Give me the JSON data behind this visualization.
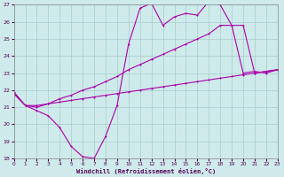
{
  "xlabel": "Windchill (Refroidissement éolien,°C)",
  "xlim": [
    0,
    23
  ],
  "ylim": [
    18,
    27
  ],
  "yticks": [
    18,
    19,
    20,
    21,
    22,
    23,
    24,
    25,
    26,
    27
  ],
  "xticks": [
    0,
    1,
    2,
    3,
    4,
    5,
    6,
    7,
    8,
    9,
    10,
    11,
    12,
    13,
    14,
    15,
    16,
    17,
    18,
    19,
    20,
    21,
    22,
    23
  ],
  "bg_color": "#ceeaea",
  "grid_color": "#aacccc",
  "line_color": "#aa00aa",
  "series1_x": [
    0,
    1,
    2,
    3,
    4,
    5,
    6,
    7,
    8,
    9,
    10,
    11,
    12,
    13,
    14,
    15,
    16,
    17,
    18,
    19,
    20,
    21,
    22,
    23
  ],
  "series1_y": [
    21.9,
    21.1,
    20.8,
    20.5,
    19.8,
    18.7,
    18.1,
    18.0,
    19.3,
    21.1,
    24.7,
    26.8,
    27.1,
    25.8,
    26.3,
    26.5,
    26.4,
    27.2,
    27.0,
    25.8,
    23.0,
    23.1,
    23.0,
    23.2
  ],
  "series2_x": [
    0,
    1,
    2,
    3,
    4,
    5,
    6,
    7,
    8,
    9,
    10,
    11,
    12,
    13,
    14,
    15,
    16,
    17,
    18,
    19,
    20,
    21,
    22,
    23
  ],
  "series2_y": [
    21.8,
    21.1,
    21.0,
    21.2,
    21.5,
    21.7,
    22.0,
    22.2,
    22.5,
    22.8,
    23.2,
    23.5,
    23.8,
    24.1,
    24.4,
    24.7,
    25.0,
    25.3,
    25.8,
    25.8,
    25.8,
    23.0,
    23.1,
    23.2
  ],
  "series3_x": [
    0,
    1,
    2,
    3,
    4,
    5,
    6,
    7,
    8,
    9,
    10,
    11,
    12,
    13,
    14,
    15,
    16,
    17,
    18,
    19,
    20,
    21,
    22,
    23
  ],
  "series3_y": [
    21.8,
    21.1,
    21.1,
    21.2,
    21.3,
    21.4,
    21.5,
    21.6,
    21.7,
    21.8,
    21.9,
    22.0,
    22.1,
    22.2,
    22.3,
    22.4,
    22.5,
    22.6,
    22.7,
    22.8,
    22.9,
    23.0,
    23.1,
    23.2
  ]
}
